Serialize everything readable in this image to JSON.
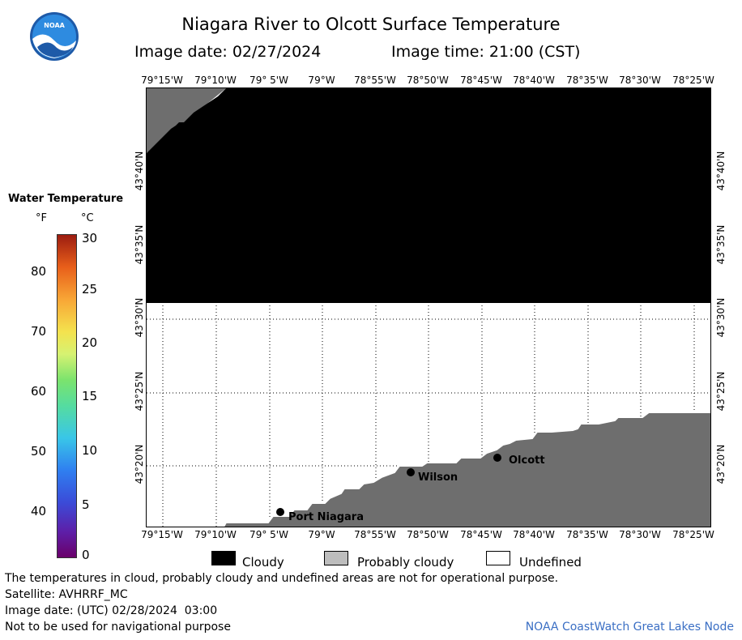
{
  "header": {
    "title": "Niagara River to Olcott Surface Temperature",
    "image_date": "Image date: 02/27/2024",
    "image_time": "Image time: 21:00 (CST)",
    "logo_text": "NOAA"
  },
  "legend": {
    "title": "Water Temperature",
    "unit_f": "°F",
    "unit_c": "°C",
    "f_ticks": [
      "80",
      "70",
      "60",
      "50",
      "40"
    ],
    "c_ticks": [
      "30",
      "25",
      "20",
      "15",
      "10",
      "5",
      "0"
    ]
  },
  "map": {
    "lon_top": [
      "79°15'W",
      "79°10'W",
      "79° 5'W",
      "79°W",
      "78°55'W",
      "78°50'W",
      "78°45'W",
      "78°40'W",
      "78°35'W",
      "78°30'W",
      "78°25'W"
    ],
    "lon_bottom": [
      "79°15'W",
      "79°10'W",
      "79° 5'W",
      "79°W",
      "78°55'W",
      "78°50'W",
      "78°45'W",
      "78°40'W",
      "78°35'W",
      "78°30'W",
      "78°25'W"
    ],
    "lat_labels": [
      "43°40'N",
      "43°35'N",
      "43°30'N",
      "43°25'N",
      "43°20'N"
    ],
    "places": [
      {
        "name": "Port Niagara"
      },
      {
        "name": "Wilson"
      },
      {
        "name": "Olcott"
      }
    ],
    "colors": {
      "cloudy": "#000000",
      "probably_cloudy": "#6e6e6e",
      "undefined": "#ffffff",
      "land": "#6e6e6e"
    }
  },
  "key": {
    "cloudy": "Cloudy",
    "probably_cloudy": "Probably cloudy",
    "undefined": "Undefined"
  },
  "footer": {
    "disclaimer": "The temperatures in cloud, probably cloudy and undefined areas are not for operational purpose.",
    "satellite": "Satellite: AVHRRF_MC",
    "utc_date": "Image date: (UTC) 02/28/2024  03:00",
    "nav_warning": "Not to be used for navigational purpose",
    "credit": "NOAA CoastWatch Great Lakes Node"
  }
}
